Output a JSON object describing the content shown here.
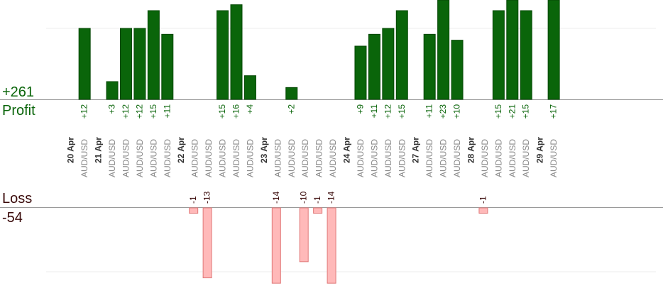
{
  "summary": {
    "profit_total": "+261",
    "profit_label": "Profit",
    "loss_label": "Loss",
    "loss_total": "-54"
  },
  "colors": {
    "profit_bar": "#0a650a",
    "profit_bar_edge": "#064806",
    "profit_text": "#0a650a",
    "loss_bar": "#ffb9b9",
    "loss_bar_edge": "#e07878",
    "loss_text": "#3a0a0a",
    "axis": "#999999",
    "grid": "#eeeeee",
    "date_text": "#333333",
    "pair_text": "#888888"
  },
  "chart_data": {
    "type": "bar",
    "title": "",
    "grid": true,
    "profit_scale_max": 12,
    "loss_scale_max": 12,
    "days": [
      {
        "date": "20 Apr",
        "trades": [
          {
            "pair": "AUD/USD",
            "result": "+12",
            "value": 12
          }
        ]
      },
      {
        "date": "21 Apr",
        "trades": [
          {
            "pair": "AUD/USD",
            "result": "+3",
            "value": 3
          },
          {
            "pair": "AUD/USD",
            "result": "+12",
            "value": 12
          },
          {
            "pair": "AUD/USD",
            "result": "+12",
            "value": 12
          },
          {
            "pair": "AUD/USD",
            "result": "+15",
            "value": 15
          },
          {
            "pair": "AUD/USD",
            "result": "+11",
            "value": 11
          }
        ]
      },
      {
        "date": "22 Apr",
        "trades": [
          {
            "pair": "AUD/USD",
            "result": "-1",
            "value": -1
          },
          {
            "pair": "AUD/USD",
            "result": "-13",
            "value": -13
          },
          {
            "pair": "AUD/USD",
            "result": "+15",
            "value": 15
          },
          {
            "pair": "AUD/USD",
            "result": "+16",
            "value": 16
          },
          {
            "pair": "AUD/USD",
            "result": "+4",
            "value": 4
          }
        ]
      },
      {
        "date": "23 Apr",
        "trades": [
          {
            "pair": "AUD/USD",
            "result": "-14",
            "value": -14
          },
          {
            "pair": "AUD/USD",
            "result": "+2",
            "value": 2
          },
          {
            "pair": "AUD/USD",
            "result": "-10",
            "value": -10
          },
          {
            "pair": "AUD/USD",
            "result": "-1",
            "value": -1
          },
          {
            "pair": "AUD/USD",
            "result": "-14",
            "value": -14
          }
        ]
      },
      {
        "date": "24 Apr",
        "trades": [
          {
            "pair": "AUD/USD",
            "result": "+9",
            "value": 9
          },
          {
            "pair": "AUD/USD",
            "result": "+11",
            "value": 11
          },
          {
            "pair": "AUD/USD",
            "result": "+12",
            "value": 12
          },
          {
            "pair": "AUD/USD",
            "result": "+15",
            "value": 15
          }
        ]
      },
      {
        "date": "27 Apr",
        "trades": [
          {
            "pair": "AUD/USD",
            "result": "+11",
            "value": 11
          },
          {
            "pair": "AUD/USD",
            "result": "+23",
            "value": 23
          },
          {
            "pair": "AUD/USD",
            "result": "+10",
            "value": 10
          }
        ]
      },
      {
        "date": "28 Apr",
        "trades": [
          {
            "pair": "AUD/USD",
            "result": "-1",
            "value": -1
          },
          {
            "pair": "AUD/USD",
            "result": "+15",
            "value": 15
          },
          {
            "pair": "AUD/USD",
            "result": "+21",
            "value": 21
          },
          {
            "pair": "AUD/USD",
            "result": "+15",
            "value": 15
          }
        ]
      },
      {
        "date": "29 Apr",
        "trades": [
          {
            "pair": "AUD/USD",
            "result": "+17",
            "value": 17
          }
        ]
      }
    ]
  }
}
